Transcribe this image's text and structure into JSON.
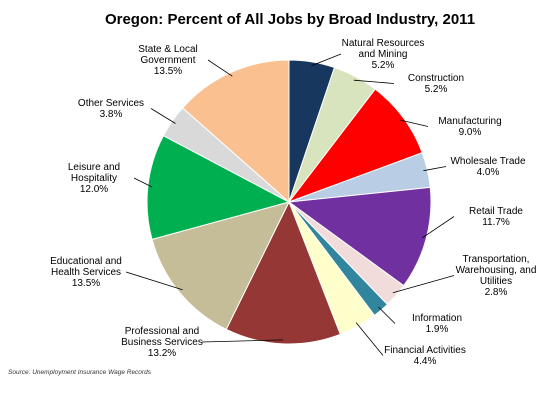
{
  "chart_data": {
    "type": "pie",
    "title": "Oregon: Percent of All Jobs by Broad Industry, 2011",
    "source": "Source: Unemployment Insurance Wage Records",
    "slices": [
      {
        "label_lines": [
          "Natural Resources",
          "and Mining"
        ],
        "value_text": "5.2%",
        "value": 5.2,
        "color": "#17375e"
      },
      {
        "label_lines": [
          "Construction"
        ],
        "value_text": "5.2%",
        "value": 5.2,
        "color": "#d7e4bd"
      },
      {
        "label_lines": [
          "Manufacturing"
        ],
        "value_text": "9.0%",
        "value": 9.0,
        "color": "#ff0000"
      },
      {
        "label_lines": [
          "Wholesale Trade"
        ],
        "value_text": "4.0%",
        "value": 4.0,
        "color": "#b9cde5"
      },
      {
        "label_lines": [
          "Retail Trade"
        ],
        "value_text": "11.7%",
        "value": 11.7,
        "color": "#7030a0"
      },
      {
        "label_lines": [
          "Transportation,",
          "Warehousing, and",
          "Utilities"
        ],
        "value_text": "2.8%",
        "value": 2.8,
        "color": "#f2dcdb"
      },
      {
        "label_lines": [
          "Information"
        ],
        "value_text": "1.9%",
        "value": 1.9,
        "color": "#31859c"
      },
      {
        "label_lines": [
          "Financial Activities"
        ],
        "value_text": "4.4%",
        "value": 4.4,
        "color": "#ffffcc"
      },
      {
        "label_lines": [
          "Professional and",
          "Business Services"
        ],
        "value_text": "13.2%",
        "value": 13.2,
        "color": "#953735"
      },
      {
        "label_lines": [
          "Educational and",
          "Health Services"
        ],
        "value_text": "13.5%",
        "value": 13.5,
        "color": "#c4bd97"
      },
      {
        "label_lines": [
          "Leisure and",
          "Hospitality"
        ],
        "value_text": "12.0%",
        "value": 12.0,
        "color": "#00b050"
      },
      {
        "label_lines": [
          "Other Services"
        ],
        "value_text": "3.8%",
        "value": 3.8,
        "color": "#d9d9d9"
      },
      {
        "label_lines": [
          "State & Local",
          "Government"
        ],
        "value_text": "13.5%",
        "value": 13.5,
        "color": "#fac090"
      }
    ]
  }
}
